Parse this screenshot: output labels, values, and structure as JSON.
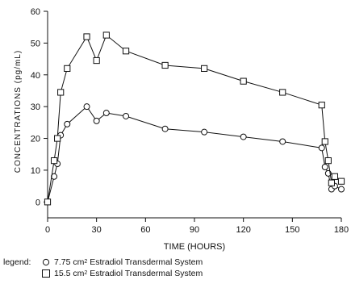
{
  "chart_data": {
    "type": "line",
    "xlabel": "TIME (HOURS)",
    "ylabel": "CONCENTRATIONS (pg/mL)",
    "xlim": [
      0,
      180
    ],
    "ylim": [
      -5,
      60
    ],
    "xticks": [
      0,
      30,
      60,
      90,
      120,
      150,
      180
    ],
    "yticks": [
      0,
      10,
      20,
      30,
      40,
      50,
      60
    ],
    "grid": false,
    "legend_position": "bottom-left",
    "series": [
      {
        "name": "7.75 cm2 Estradiol Transdermal System",
        "marker": "circle",
        "x": [
          0,
          4,
          6,
          8,
          12,
          24,
          30,
          36,
          48,
          72,
          96,
          120,
          144,
          168,
          170,
          172,
          174,
          176,
          180
        ],
        "y": [
          0,
          8,
          12,
          21,
          24.5,
          30,
          25.5,
          28,
          27,
          23,
          22,
          20.5,
          19,
          17,
          11,
          9,
          4,
          5,
          4
        ]
      },
      {
        "name": "15.5 cm2 Estradiol Transdermal System",
        "marker": "square",
        "x": [
          0,
          4,
          6,
          8,
          12,
          24,
          30,
          36,
          48,
          72,
          96,
          120,
          144,
          168,
          170,
          172,
          174,
          176,
          180
        ],
        "y": [
          0,
          13,
          20,
          34.5,
          42,
          52,
          44.5,
          52.5,
          47.5,
          43,
          42,
          38,
          34.5,
          30.5,
          19,
          13,
          6,
          8,
          6.5
        ]
      }
    ]
  },
  "legend": {
    "prefix": "legend:",
    "items": [
      {
        "size": "7.75 cm",
        "exponent": "2",
        "name": "Estradiol Transdermal System"
      },
      {
        "size": "15.5 cm",
        "exponent": "2",
        "name": "Estradiol Transdermal System"
      }
    ]
  }
}
